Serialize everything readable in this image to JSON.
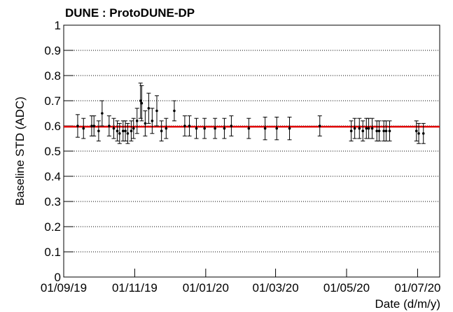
{
  "chart_data": {
    "type": "scatter",
    "title": "DUNE : ProtoDUNE-DP",
    "ylabel": "Baseline STD (ADC)",
    "xlabel": "Date (d/m/y)",
    "x": [
      "2019-09-13",
      "2019-09-18",
      "2019-09-25",
      "2019-09-27",
      "2019-10-01",
      "2019-10-04",
      "2019-10-10",
      "2019-10-14",
      "2019-10-17",
      "2019-10-19",
      "2019-10-22",
      "2019-10-24",
      "2019-10-26",
      "2019-10-29",
      "2019-10-31",
      "2019-11-03",
      "2019-11-06",
      "2019-11-07",
      "2019-11-10",
      "2019-11-13",
      "2019-11-16",
      "2019-11-20",
      "2019-11-24",
      "2019-11-28",
      "2019-12-05",
      "2019-12-14",
      "2019-12-18",
      "2019-12-24",
      "2019-12-31",
      "2020-01-09",
      "2020-01-17",
      "2020-01-23",
      "2020-02-07",
      "2020-02-21",
      "2020-03-02",
      "2020-03-13",
      "2020-04-08",
      "2020-05-05",
      "2020-05-08",
      "2020-05-12",
      "2020-05-15",
      "2020-05-18",
      "2020-05-20",
      "2020-05-23",
      "2020-05-27",
      "2020-05-29",
      "2020-06-02",
      "2020-06-04",
      "2020-06-07",
      "2020-06-30",
      "2020-07-02",
      "2020-07-06"
    ],
    "values": [
      0.6,
      0.59,
      0.6,
      0.6,
      0.58,
      0.65,
      0.6,
      0.59,
      0.58,
      0.57,
      0.58,
      0.58,
      0.57,
      0.58,
      0.59,
      0.62,
      0.7,
      0.69,
      0.61,
      0.67,
      0.62,
      0.66,
      0.58,
      0.59,
      0.66,
      0.6,
      0.6,
      0.59,
      0.59,
      0.59,
      0.59,
      0.6,
      0.59,
      0.59,
      0.59,
      0.59,
      0.6,
      0.58,
      0.59,
      0.59,
      0.58,
      0.59,
      0.59,
      0.59,
      0.58,
      0.58,
      0.58,
      0.58,
      0.58,
      0.58,
      0.57,
      0.57
    ],
    "errors": [
      0.045,
      0.04,
      0.04,
      0.04,
      0.04,
      0.05,
      0.04,
      0.04,
      0.04,
      0.04,
      0.04,
      0.04,
      0.04,
      0.04,
      0.04,
      0.05,
      0.07,
      0.07,
      0.05,
      0.06,
      0.05,
      0.06,
      0.04,
      0.04,
      0.04,
      0.04,
      0.04,
      0.04,
      0.04,
      0.04,
      0.04,
      0.04,
      0.04,
      0.045,
      0.045,
      0.045,
      0.04,
      0.04,
      0.04,
      0.04,
      0.04,
      0.04,
      0.04,
      0.04,
      0.04,
      0.04,
      0.04,
      0.04,
      0.04,
      0.04,
      0.04,
      0.04
    ],
    "color": "#000000",
    "fit": {
      "value": 0.597,
      "color": "#e00000"
    },
    "xlim": [
      "2019-09-01",
      "2020-07-20"
    ],
    "xticks": [
      {
        "value": "2019-09-01",
        "label": "01/09/19"
      },
      {
        "value": "2019-11-01",
        "label": "01/11/19"
      },
      {
        "value": "2020-01-01",
        "label": "01/01/20"
      },
      {
        "value": "2020-03-01",
        "label": "01/03/20"
      },
      {
        "value": "2020-05-01",
        "label": "01/05/20"
      },
      {
        "value": "2020-07-01",
        "label": "01/07/20"
      }
    ],
    "ylim": [
      0,
      1
    ],
    "yticks": [
      0,
      0.1,
      0.2,
      0.3,
      0.4,
      0.5,
      0.6,
      0.7,
      0.8,
      0.9,
      1
    ],
    "grid": true
  }
}
